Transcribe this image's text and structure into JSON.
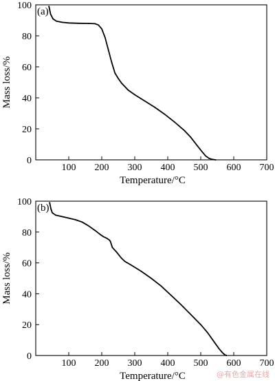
{
  "chart_data": [
    {
      "type": "line",
      "panel_label": "(a)",
      "xlabel": "Temperature/°C",
      "ylabel": "Mass loss/%",
      "xlim": [
        0,
        700
      ],
      "ylim": [
        0,
        100
      ],
      "x_ticks": [
        100,
        200,
        300,
        400,
        500,
        600,
        700
      ],
      "y_ticks": [
        0,
        20,
        40,
        60,
        80,
        100
      ],
      "grid": false,
      "series": [
        {
          "x": [
            40,
            45,
            52,
            62,
            80,
            100,
            130,
            160,
            180,
            190,
            200,
            210,
            220,
            230,
            240,
            250,
            260,
            280,
            300,
            330,
            360,
            390,
            420,
            450,
            470,
            490,
            505,
            515,
            525,
            535,
            545
          ],
          "y": [
            99,
            94,
            91,
            89.5,
            88.7,
            88.3,
            88.1,
            88.0,
            87.8,
            87.0,
            84.5,
            79,
            71,
            63,
            56,
            52.5,
            49.5,
            45,
            42,
            38,
            34,
            29.5,
            24.5,
            19,
            14.5,
            9,
            5,
            2.5,
            1,
            0.3,
            0
          ]
        }
      ]
    },
    {
      "type": "line",
      "panel_label": "(b)",
      "xlabel": "Temperature/°C",
      "ylabel": "Mass loss/%",
      "xlim": [
        0,
        700
      ],
      "ylim": [
        0,
        100
      ],
      "x_ticks": [
        100,
        200,
        300,
        400,
        500,
        600,
        700
      ],
      "y_ticks": [
        0,
        20,
        40,
        60,
        80,
        100
      ],
      "grid": false,
      "series": [
        {
          "x": [
            42,
            46,
            50,
            60,
            80,
            100,
            120,
            140,
            160,
            180,
            195,
            205,
            215,
            222,
            226,
            232,
            245,
            260,
            270,
            290,
            320,
            350,
            380,
            410,
            440,
            470,
            500,
            520,
            540,
            555,
            565,
            572,
            578
          ],
          "y": [
            99,
            95,
            92.5,
            91,
            90,
            89,
            88,
            86.5,
            84,
            81,
            78.5,
            77,
            76,
            75,
            74,
            70,
            67,
            63,
            61,
            58.5,
            54.5,
            50,
            45,
            39,
            33,
            26.5,
            20,
            15,
            9,
            4.5,
            2,
            0.6,
            0
          ]
        }
      ]
    }
  ],
  "watermark": "@有色金属在线"
}
